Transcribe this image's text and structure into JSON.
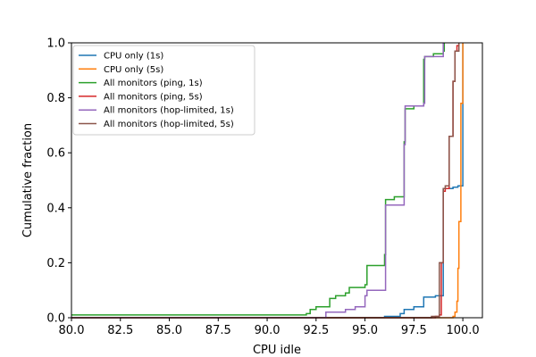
{
  "chart_data": {
    "type": "line",
    "xlabel": "CPU idle",
    "ylabel": "Cumulative fraction",
    "xlim": [
      80,
      101
    ],
    "ylim": [
      0,
      1
    ],
    "x_ticks": [
      "80.0",
      "82.5",
      "85.0",
      "87.5",
      "90.0",
      "92.5",
      "95.0",
      "97.5",
      "100.0"
    ],
    "y_ticks": [
      "0.0",
      "0.2",
      "0.4",
      "0.6",
      "0.8",
      "1.0"
    ],
    "legend_position": "upper-left",
    "series": [
      {
        "name": "CPU only (1s)",
        "color": "#1f77b4",
        "x": [
          80,
          96.0,
          96.8,
          97.0,
          97.5,
          98.0,
          98.6,
          98.7,
          98.9,
          99.0,
          99.05,
          99.3,
          99.5,
          99.75,
          99.8,
          100.0
        ],
        "y": [
          0.0,
          0.005,
          0.015,
          0.03,
          0.04,
          0.075,
          0.08,
          0.08,
          0.08,
          0.47,
          0.47,
          0.47,
          0.475,
          0.48,
          0.48,
          1.0
        ]
      },
      {
        "name": "CPU only (5s)",
        "color": "#ff7f0e",
        "x": [
          80,
          98.5,
          99.5,
          99.6,
          99.7,
          99.75,
          99.8,
          99.9,
          100.0
        ],
        "y": [
          0.0,
          0.0,
          0.005,
          0.02,
          0.06,
          0.18,
          0.35,
          0.78,
          1.0
        ]
      },
      {
        "name": "All monitors (ping, 1s)",
        "color": "#2ca02c",
        "x": [
          80,
          92.0,
          92.2,
          92.5,
          93.2,
          93.5,
          94.0,
          94.2,
          95.0,
          95.1,
          96.0,
          96.05,
          96.5,
          97.0,
          97.05,
          97.5,
          98.0,
          98.05,
          98.5,
          99.0,
          99.05
        ],
        "y": [
          0.01,
          0.015,
          0.03,
          0.04,
          0.07,
          0.08,
          0.09,
          0.11,
          0.12,
          0.19,
          0.23,
          0.43,
          0.44,
          0.64,
          0.76,
          0.77,
          0.94,
          0.95,
          0.96,
          0.97,
          1.0
        ]
      },
      {
        "name": "All monitors (ping, 5s)",
        "color": "#d62728",
        "x": [
          80,
          98.0,
          98.6,
          98.8,
          98.9,
          99.0,
          99.1,
          99.3,
          99.5,
          99.6,
          99.7,
          99.8
        ],
        "y": [
          0.0,
          0.0,
          0.005,
          0.01,
          0.2,
          0.46,
          0.47,
          0.66,
          0.86,
          0.97,
          0.99,
          1.0
        ]
      },
      {
        "name": "All monitors (hop-limited, 1s)",
        "color": "#9467bd",
        "x": [
          80,
          91.5,
          93.0,
          94.0,
          94.5,
          95.0,
          95.1,
          96.0,
          96.05,
          97.0,
          97.05,
          98.0,
          98.05,
          99.0
        ],
        "y": [
          0.0,
          0.0,
          0.02,
          0.03,
          0.04,
          0.08,
          0.1,
          0.1,
          0.41,
          0.63,
          0.77,
          0.78,
          0.95,
          1.0
        ]
      },
      {
        "name": "All monitors (hop-limited, 5s)",
        "color": "#8c564b",
        "x": [
          80,
          98.2,
          98.4,
          98.8,
          99.0,
          99.1,
          99.3,
          99.5,
          99.6,
          99.8
        ],
        "y": [
          0.0,
          0.0,
          0.005,
          0.2,
          0.47,
          0.48,
          0.66,
          0.86,
          0.97,
          1.0
        ]
      }
    ]
  }
}
